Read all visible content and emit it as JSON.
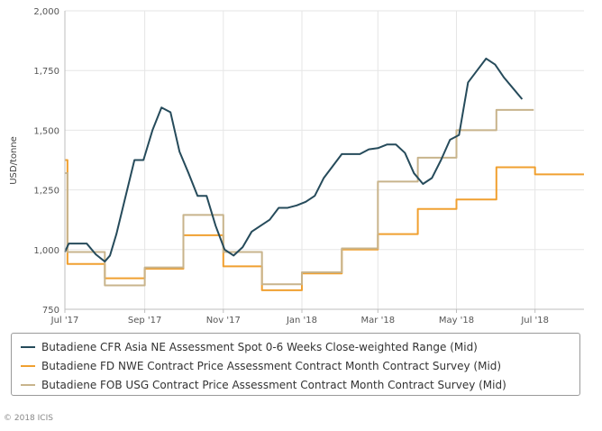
{
  "chart_data": {
    "type": "line",
    "title": "",
    "xlabel": "",
    "ylabel": "USD/tonne",
    "ylim": [
      750,
      2000
    ],
    "yticks": [
      "750",
      "1,000",
      "1,250",
      "1,500",
      "1,750",
      "2,000"
    ],
    "ytick_values": [
      750,
      1000,
      1250,
      1500,
      1750,
      2000
    ],
    "xlim": [
      "2017-07-01",
      "2018-08-08"
    ],
    "xticks": [
      {
        "date": "2017-07-01",
        "label": "Jul '17"
      },
      {
        "date": "2017-09-01",
        "label": "Sep '17"
      },
      {
        "date": "2017-11-01",
        "label": "Nov '17"
      },
      {
        "date": "2018-01-01",
        "label": "Jan '18"
      },
      {
        "date": "2018-03-01",
        "label": "Mar '18"
      },
      {
        "date": "2018-05-01",
        "label": "May '18"
      },
      {
        "date": "2018-07-01",
        "label": "Jul '18"
      }
    ],
    "grid": true,
    "legend_position": "bottom",
    "series": [
      {
        "name": "Butadiene CFR Asia NE Assessment Spot 0-6 Weeks Close-weighted Range (Mid)",
        "color": "#264b5b",
        "step": false,
        "points": [
          [
            "2017-07-01",
            990
          ],
          [
            "2017-07-04",
            1025
          ],
          [
            "2017-07-11",
            1025
          ],
          [
            "2017-07-18",
            1025
          ],
          [
            "2017-07-25",
            980
          ],
          [
            "2017-08-01",
            950
          ],
          [
            "2017-08-05",
            975
          ],
          [
            "2017-08-10",
            1065
          ],
          [
            "2017-08-17",
            1220
          ],
          [
            "2017-08-24",
            1375
          ],
          [
            "2017-08-31",
            1375
          ],
          [
            "2017-09-07",
            1500
          ],
          [
            "2017-09-14",
            1595
          ],
          [
            "2017-09-21",
            1575
          ],
          [
            "2017-09-28",
            1410
          ],
          [
            "2017-10-05",
            1320
          ],
          [
            "2017-10-12",
            1225
          ],
          [
            "2017-10-19",
            1225
          ],
          [
            "2017-10-26",
            1100
          ],
          [
            "2017-11-02",
            1000
          ],
          [
            "2017-11-09",
            975
          ],
          [
            "2017-11-16",
            1010
          ],
          [
            "2017-11-23",
            1075
          ],
          [
            "2017-11-30",
            1100
          ],
          [
            "2017-12-07",
            1125
          ],
          [
            "2017-12-14",
            1175
          ],
          [
            "2017-12-21",
            1175
          ],
          [
            "2017-12-28",
            1185
          ],
          [
            "2018-01-04",
            1200
          ],
          [
            "2018-01-11",
            1225
          ],
          [
            "2018-01-18",
            1300
          ],
          [
            "2018-01-25",
            1350
          ],
          [
            "2018-02-01",
            1400
          ],
          [
            "2018-02-08",
            1400
          ],
          [
            "2018-02-15",
            1400
          ],
          [
            "2018-02-22",
            1420
          ],
          [
            "2018-03-01",
            1425
          ],
          [
            "2018-03-08",
            1440
          ],
          [
            "2018-03-15",
            1440
          ],
          [
            "2018-03-22",
            1405
          ],
          [
            "2018-03-29",
            1320
          ],
          [
            "2018-04-05",
            1275
          ],
          [
            "2018-04-12",
            1300
          ],
          [
            "2018-04-19",
            1375
          ],
          [
            "2018-04-26",
            1460
          ],
          [
            "2018-05-03",
            1480
          ],
          [
            "2018-05-10",
            1700
          ],
          [
            "2018-05-17",
            1750
          ],
          [
            "2018-05-24",
            1800
          ],
          [
            "2018-05-31",
            1775
          ],
          [
            "2018-06-07",
            1720
          ],
          [
            "2018-06-14",
            1675
          ],
          [
            "2018-06-21",
            1630
          ]
        ]
      },
      {
        "name": "Butadiene FD NWE Contract Price Assessment Contract Month Contract Survey (Mid)",
        "color": "#f0a030",
        "step": true,
        "points": [
          [
            "2017-07-01",
            1375
          ],
          [
            "2017-07-03",
            940
          ],
          [
            "2017-08-01",
            880
          ],
          [
            "2017-09-01",
            920
          ],
          [
            "2017-10-01",
            1060
          ],
          [
            "2017-11-01",
            930
          ],
          [
            "2017-12-01",
            830
          ],
          [
            "2018-01-01",
            900
          ],
          [
            "2018-02-01",
            1000
          ],
          [
            "2018-03-01",
            1065
          ],
          [
            "2018-04-01",
            1170
          ],
          [
            "2018-05-01",
            1210
          ],
          [
            "2018-06-01",
            1345
          ],
          [
            "2018-07-01",
            1315
          ],
          [
            "2018-08-08",
            1315
          ]
        ]
      },
      {
        "name": "Butadiene FOB USG Contract Price Assessment Contract Month Contract Survey (Mid)",
        "color": "#c8b48c",
        "step": true,
        "points": [
          [
            "2017-07-01",
            1320
          ],
          [
            "2017-07-03",
            990
          ],
          [
            "2017-08-01",
            850
          ],
          [
            "2017-09-01",
            925
          ],
          [
            "2017-10-01",
            1145
          ],
          [
            "2017-11-01",
            990
          ],
          [
            "2017-12-01",
            855
          ],
          [
            "2018-01-01",
            905
          ],
          [
            "2018-02-01",
            1005
          ],
          [
            "2018-03-01",
            1285
          ],
          [
            "2018-04-01",
            1385
          ],
          [
            "2018-05-01",
            1500
          ],
          [
            "2018-06-01",
            1585
          ],
          [
            "2018-06-30",
            1585
          ]
        ]
      }
    ]
  },
  "copyright": "© 2018 ICIS"
}
